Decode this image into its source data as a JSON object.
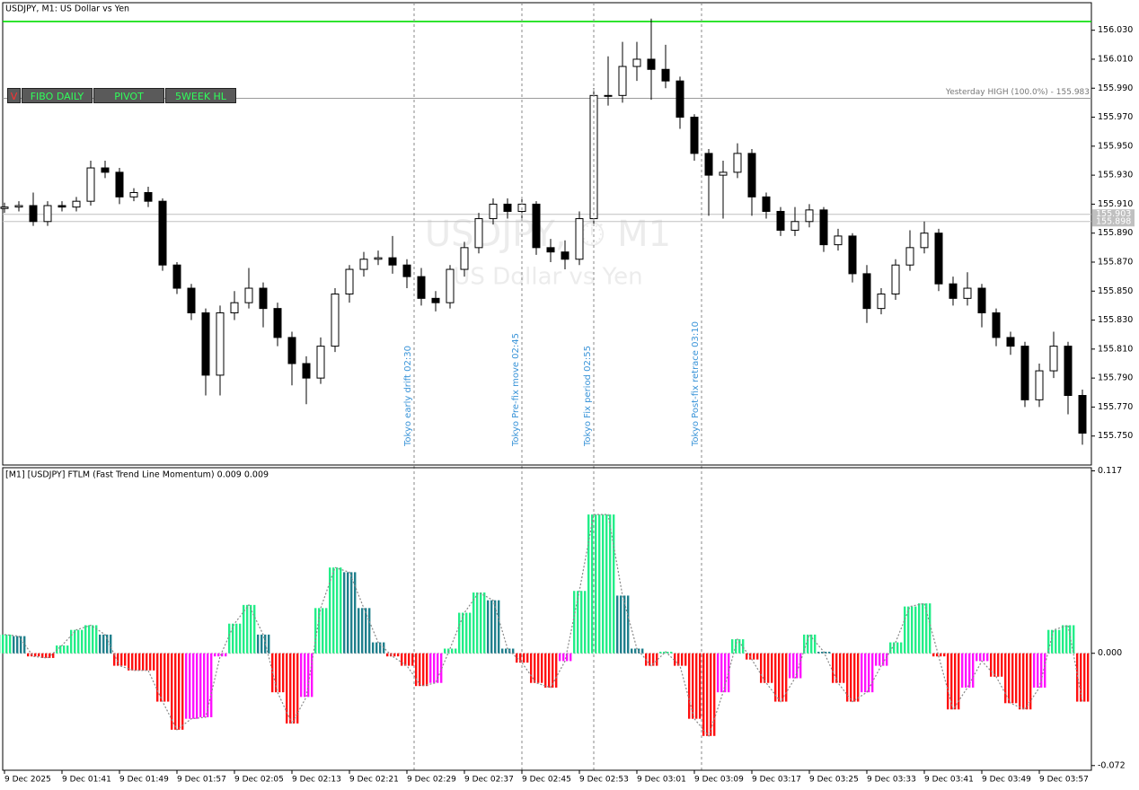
{
  "toolbar": [
    "V",
    "FIBO DAILY",
    "PIVOT",
    "5WEEK HL"
  ],
  "chart_data": [
    {
      "type": "candlestick",
      "title": "USDJPY, M1:  US Dollar vs Yen",
      "watermark": [
        "USDJPY, ⏱ M1",
        "US Dollar vs Yen"
      ],
      "categories": [
        "9 Dec 2025",
        null,
        null,
        null,
        "9 Dec 01:41",
        null,
        null,
        null,
        "9 Dec 01:49",
        null,
        null,
        null,
        "9 Dec 01:57",
        null,
        null,
        null,
        "9 Dec 02:05",
        null,
        null,
        null,
        "9 Dec 02:13",
        null,
        null,
        null,
        "9 Dec 02:21",
        null,
        null,
        null,
        "9 Dec 02:29",
        null,
        null,
        null,
        "9 Dec 02:37",
        null,
        null,
        null,
        "9 Dec 02:45",
        null,
        null,
        null,
        "9 Dec 02:53",
        null,
        null,
        null,
        "9 Dec 03:01",
        null,
        null,
        null,
        "9 Dec 03:09",
        null,
        null,
        null,
        "9 Dec 03:17",
        null,
        null,
        null,
        "9 Dec 03:25",
        null,
        null,
        null,
        "9 Dec 03:33",
        null,
        null,
        null,
        "9 Dec 03:41",
        null,
        null,
        null,
        "9 Dec 03:49",
        null,
        null,
        null,
        "9 Dec 03:57",
        null,
        null,
        null
      ],
      "ohlc": [
        [
          155.907,
          155.911,
          155.904,
          155.908
        ],
        [
          155.908,
          155.912,
          155.905,
          155.909
        ],
        [
          155.909,
          155.918,
          155.895,
          155.898
        ],
        [
          155.898,
          155.912,
          155.895,
          155.909
        ],
        [
          155.909,
          155.912,
          155.905,
          155.908
        ],
        [
          155.908,
          155.915,
          155.905,
          155.912
        ],
        [
          155.912,
          155.94,
          155.909,
          155.935
        ],
        [
          155.935,
          155.94,
          155.928,
          155.932
        ],
        [
          155.932,
          155.935,
          155.91,
          155.915
        ],
        [
          155.915,
          155.921,
          155.912,
          155.918
        ],
        [
          155.918,
          155.922,
          155.908,
          155.912
        ],
        [
          155.912,
          155.914,
          155.864,
          155.868
        ],
        [
          155.868,
          155.87,
          155.848,
          155.852
        ],
        [
          155.852,
          155.855,
          155.83,
          155.835
        ],
        [
          155.835,
          155.838,
          155.778,
          155.792
        ],
        [
          155.792,
          155.84,
          155.778,
          155.835
        ],
        [
          155.835,
          155.85,
          155.83,
          155.842
        ],
        [
          155.842,
          155.866,
          155.838,
          155.852
        ],
        [
          155.852,
          155.856,
          155.825,
          155.838
        ],
        [
          155.838,
          155.842,
          155.812,
          155.818
        ],
        [
          155.818,
          155.822,
          155.785,
          155.8
        ],
        [
          155.8,
          155.805,
          155.772,
          155.79
        ],
        [
          155.79,
          155.818,
          155.786,
          155.812
        ],
        [
          155.812,
          155.852,
          155.808,
          155.848
        ],
        [
          155.848,
          155.868,
          155.842,
          155.865
        ],
        [
          155.865,
          155.877,
          155.86,
          155.872
        ],
        [
          155.872,
          155.878,
          155.868,
          155.873
        ],
        [
          155.873,
          155.888,
          155.862,
          155.868
        ],
        [
          155.868,
          155.872,
          155.852,
          155.86
        ],
        [
          155.86,
          155.866,
          155.84,
          155.845
        ],
        [
          155.845,
          155.85,
          155.836,
          155.842
        ],
        [
          155.842,
          155.868,
          155.838,
          155.865
        ],
        [
          155.865,
          155.884,
          155.86,
          155.88
        ],
        [
          155.88,
          155.904,
          155.876,
          155.9
        ],
        [
          155.9,
          155.914,
          155.896,
          155.91
        ],
        [
          155.91,
          155.914,
          155.9,
          155.905
        ],
        [
          155.905,
          155.914,
          155.9,
          155.91
        ],
        [
          155.91,
          155.912,
          155.875,
          155.88
        ],
        [
          155.88,
          155.886,
          155.87,
          155.877
        ],
        [
          155.877,
          155.885,
          155.865,
          155.872
        ],
        [
          155.872,
          155.905,
          155.868,
          155.9
        ],
        [
          155.9,
          155.99,
          155.896,
          155.985
        ],
        [
          155.985,
          156.012,
          155.978,
          155.985
        ],
        [
          155.985,
          156.022,
          155.98,
          156.005
        ],
        [
          156.005,
          156.022,
          155.995,
          156.01
        ],
        [
          156.01,
          156.038,
          155.982,
          156.003
        ],
        [
          156.003,
          156.02,
          155.99,
          155.995
        ],
        [
          155.995,
          155.998,
          155.962,
          155.97
        ],
        [
          155.97,
          155.972,
          155.94,
          155.945
        ],
        [
          155.945,
          155.948,
          155.902,
          155.93
        ],
        [
          155.93,
          155.94,
          155.9,
          155.932
        ],
        [
          155.932,
          155.952,
          155.928,
          155.945
        ],
        [
          155.945,
          155.948,
          155.902,
          155.915
        ],
        [
          155.915,
          155.918,
          155.9,
          155.905
        ],
        [
          155.905,
          155.908,
          155.888,
          155.892
        ],
        [
          155.892,
          155.908,
          155.888,
          155.898
        ],
        [
          155.898,
          155.91,
          155.894,
          155.906
        ],
        [
          155.906,
          155.908,
          155.877,
          155.882
        ],
        [
          155.882,
          155.893,
          155.878,
          155.888
        ],
        [
          155.888,
          155.89,
          155.856,
          155.862
        ],
        [
          155.862,
          155.868,
          155.828,
          155.838
        ],
        [
          155.838,
          155.852,
          155.834,
          155.848
        ],
        [
          155.848,
          155.872,
          155.844,
          155.868
        ],
        [
          155.868,
          155.892,
          155.864,
          155.88
        ],
        [
          155.88,
          155.898,
          155.876,
          155.89
        ],
        [
          155.89,
          155.893,
          155.85,
          155.855
        ],
        [
          155.855,
          155.86,
          155.84,
          155.845
        ],
        [
          155.845,
          155.863,
          155.84,
          155.852
        ],
        [
          155.852,
          155.855,
          155.825,
          155.835
        ],
        [
          155.835,
          155.838,
          155.812,
          155.818
        ],
        [
          155.818,
          155.822,
          155.806,
          155.812
        ],
        [
          155.812,
          155.815,
          155.77,
          155.775
        ],
        [
          155.775,
          155.8,
          155.77,
          155.795
        ],
        [
          155.795,
          155.822,
          155.79,
          155.812
        ],
        [
          155.812,
          155.815,
          155.765,
          155.778
        ],
        [
          155.778,
          155.782,
          155.744,
          155.752
        ]
      ],
      "ylim": [
        155.73,
        156.049
      ],
      "yticks": [
        {
          "value": 155.75,
          "label": "155.750"
        },
        {
          "value": 155.77,
          "label": "155.770"
        },
        {
          "value": 155.79,
          "label": "155.790"
        },
        {
          "value": 155.81,
          "label": "155.810"
        },
        {
          "value": 155.83,
          "label": "155.830"
        },
        {
          "value": 155.85,
          "label": "155.850"
        },
        {
          "value": 155.87,
          "label": "155.870"
        },
        {
          "value": 155.89,
          "label": "155.890"
        },
        {
          "value": 155.91,
          "label": "155.910"
        },
        {
          "value": 155.93,
          "label": "155.930"
        },
        {
          "value": 155.95,
          "label": "155.950"
        },
        {
          "value": 155.97,
          "label": "155.970"
        },
        {
          "value": 155.99,
          "label": "155.990"
        },
        {
          "value": 156.01,
          "label": "156.010"
        },
        {
          "value": 156.03,
          "label": "156.030"
        }
      ],
      "levels": [
        {
          "value": 156.036,
          "color": "#00dd00"
        },
        {
          "value": 155.983,
          "color": "#999999",
          "label": "Yesterday HIGH (100.0%) - 155.983"
        },
        {
          "value": 155.903,
          "color": "#c0c0c0",
          "axis_label": "155.903"
        },
        {
          "value": 155.898,
          "color": "#c0c0c0",
          "axis_label": "155.898"
        }
      ],
      "events": [
        {
          "x": 28.5,
          "label": "Tokyo early drift 02:30"
        },
        {
          "x": 36,
          "label": "Tokyo Pre-fix move 02:45"
        },
        {
          "x": 41,
          "label": "Tokyo Fix period 02:55"
        },
        {
          "x": 48.5,
          "label": "Tokyo Post-fix retrace 03:10"
        }
      ],
      "colors": {
        "up": "#ffffff",
        "down": "#000000",
        "outline": "#000000",
        "event": "#3a94d8"
      }
    },
    {
      "type": "bar",
      "title": "[M1] [USDJPY] FTLM (Fast Trend Line Momentum) 0.009 0.009",
      "values": [
        0.012,
        0.011,
        -0.002,
        -0.003,
        0.005,
        0.015,
        0.018,
        0.012,
        -0.008,
        -0.011,
        -0.011,
        -0.031,
        -0.049,
        -0.042,
        -0.041,
        -0.002,
        0.019,
        0.031,
        0.012,
        -0.025,
        -0.045,
        -0.028,
        0.029,
        0.055,
        0.052,
        0.029,
        0.007,
        -0.002,
        -0.008,
        -0.021,
        -0.019,
        0.003,
        0.026,
        0.039,
        0.034,
        0.003,
        -0.006,
        -0.019,
        -0.022,
        -0.005,
        0.04,
        0.089,
        0.089,
        0.037,
        0.003,
        -0.008,
        0.001,
        -0.008,
        -0.042,
        -0.053,
        -0.025,
        0.009,
        -0.004,
        -0.019,
        -0.031,
        -0.016,
        0.012,
        0.001,
        -0.019,
        -0.031,
        -0.025,
        -0.008,
        0.007,
        0.03,
        0.032,
        -0.002,
        -0.036,
        -0.022,
        -0.005,
        -0.015,
        -0.032,
        -0.036,
        -0.022,
        0.015,
        0.018,
        -0.031
      ],
      "ylim": [
        -0.075,
        0.119
      ],
      "yticks": [
        -0.072,
        {
          "value": 0,
          "label": "0.000"
        },
        0.117
      ],
      "palette": [
        "#22ee88",
        "#1f7f8c",
        "#ff1010",
        "#ff10ff"
      ]
    }
  ]
}
